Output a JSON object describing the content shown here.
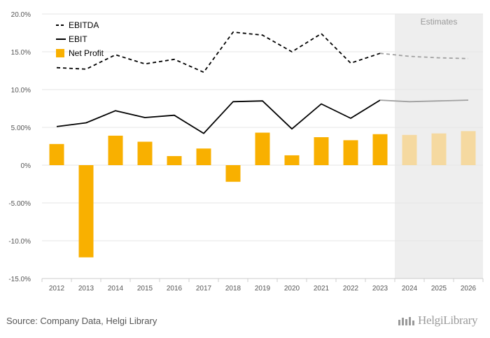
{
  "chart_data": {
    "type": "bar",
    "title": "",
    "xlabel": "",
    "ylabel": "",
    "categories": [
      "2012",
      "2013",
      "2014",
      "2015",
      "2016",
      "2017",
      "2018",
      "2019",
      "2020",
      "2021",
      "2022",
      "2023",
      "2024",
      "2025",
      "2026"
    ],
    "estimate_start_index": 12,
    "estimates_label": "Estimates",
    "ylim": [
      -15,
      20
    ],
    "yticks": [
      20,
      15,
      10,
      5,
      0,
      -5,
      -10,
      -15
    ],
    "ytick_labels": [
      "20.0%",
      "15.0%",
      "10.0%",
      "5.00%",
      "0%",
      "-5.00%",
      "-10.0%",
      "-15.0%"
    ],
    "grid": true,
    "legend_position": "top-left",
    "series": [
      {
        "name": "EBITDA",
        "type": "line",
        "style": "dashed",
        "values": [
          12.9,
          12.7,
          14.6,
          13.4,
          14.0,
          12.3,
          17.6,
          17.2,
          15.0,
          17.4,
          13.5,
          14.8,
          14.4,
          14.2,
          14.1
        ]
      },
      {
        "name": "EBIT",
        "type": "line",
        "style": "solid",
        "values": [
          5.1,
          5.6,
          7.2,
          6.3,
          6.6,
          4.2,
          8.4,
          8.5,
          4.8,
          8.1,
          6.2,
          8.6,
          8.4,
          8.5,
          8.6
        ]
      },
      {
        "name": "Net Profit",
        "type": "bar",
        "values": [
          2.8,
          -12.2,
          3.9,
          3.1,
          1.2,
          2.2,
          -2.2,
          4.3,
          1.3,
          3.7,
          3.3,
          4.1,
          4.0,
          4.2,
          4.5
        ]
      }
    ],
    "colors": {
      "bar": "#f9b000",
      "bar_estimate": "#f5d9a0",
      "line": "#000000",
      "line_estimate": "#a0a0a0",
      "estimate_band": "#eeeeee"
    }
  },
  "footer": {
    "source": "Source: Company Data, Helgi Library",
    "logo_text": "HelgiLibrary",
    "logo_icon": "helgi-logo-icon"
  }
}
